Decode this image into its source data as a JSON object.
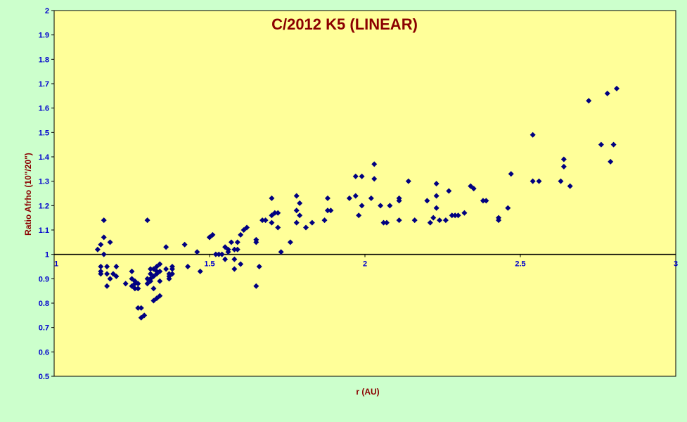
{
  "colors": {
    "background": "#ccffcc",
    "plot_area": "#ffff99",
    "marker": "#000080",
    "title": "#8b0000",
    "tick": "#0000cc"
  },
  "chart_data": {
    "type": "scatter",
    "title": "C/2012 K5 (LINEAR)",
    "xlabel": "r (AU)",
    "ylabel": "Ratio Afrho (10\"/20\")",
    "xlim": [
      1,
      3
    ],
    "ylim": [
      0.5,
      2
    ],
    "x_ticks": [
      "1",
      "1.5",
      "2",
      "2.5",
      "3"
    ],
    "y_ticks": [
      "0.5",
      "0.6",
      "0.7",
      "0.8",
      "0.9",
      "1",
      "1.1",
      "1.2",
      "1.3",
      "1.4",
      "1.5",
      "1.6",
      "1.7",
      "1.8",
      "1.9",
      "2"
    ],
    "reference_line_y": 1,
    "grid": false,
    "marker": "diamond",
    "points": [
      [
        1.14,
        1.02
      ],
      [
        1.15,
        0.93
      ],
      [
        1.15,
        0.92
      ],
      [
        1.15,
        0.95
      ],
      [
        1.15,
        1.04
      ],
      [
        1.16,
        1.14
      ],
      [
        1.16,
        1.07
      ],
      [
        1.16,
        1.0
      ],
      [
        1.17,
        0.87
      ],
      [
        1.17,
        0.95
      ],
      [
        1.17,
        0.92
      ],
      [
        1.18,
        1.05
      ],
      [
        1.18,
        0.9
      ],
      [
        1.19,
        0.92
      ],
      [
        1.2,
        0.95
      ],
      [
        1.2,
        0.91
      ],
      [
        1.23,
        0.88
      ],
      [
        1.25,
        0.87
      ],
      [
        1.25,
        0.93
      ],
      [
        1.25,
        0.9
      ],
      [
        1.26,
        0.86
      ],
      [
        1.26,
        0.88
      ],
      [
        1.26,
        0.89
      ],
      [
        1.27,
        0.78
      ],
      [
        1.27,
        0.86
      ],
      [
        1.27,
        0.88
      ],
      [
        1.28,
        0.74
      ],
      [
        1.28,
        0.78
      ],
      [
        1.29,
        0.75
      ],
      [
        1.3,
        1.14
      ],
      [
        1.3,
        0.9
      ],
      [
        1.3,
        0.88
      ],
      [
        1.31,
        0.94
      ],
      [
        1.31,
        0.92
      ],
      [
        1.31,
        0.9
      ],
      [
        1.31,
        0.89
      ],
      [
        1.32,
        0.86
      ],
      [
        1.32,
        0.94
      ],
      [
        1.32,
        0.81
      ],
      [
        1.32,
        0.91
      ],
      [
        1.33,
        0.92
      ],
      [
        1.33,
        0.95
      ],
      [
        1.33,
        0.82
      ],
      [
        1.33,
        0.93
      ],
      [
        1.34,
        0.96
      ],
      [
        1.34,
        0.93
      ],
      [
        1.34,
        0.83
      ],
      [
        1.34,
        0.89
      ],
      [
        1.36,
        1.03
      ],
      [
        1.36,
        0.94
      ],
      [
        1.37,
        0.92
      ],
      [
        1.37,
        0.9
      ],
      [
        1.37,
        0.91
      ],
      [
        1.38,
        0.94
      ],
      [
        1.38,
        0.95
      ],
      [
        1.38,
        0.92
      ],
      [
        1.42,
        1.04
      ],
      [
        1.43,
        0.95
      ],
      [
        1.46,
        1.01
      ],
      [
        1.47,
        0.93
      ],
      [
        1.5,
        1.07
      ],
      [
        1.5,
        1.07
      ],
      [
        1.51,
        1.08
      ],
      [
        1.52,
        1.0
      ],
      [
        1.53,
        1.0
      ],
      [
        1.54,
        1.0
      ],
      [
        1.55,
        1.03
      ],
      [
        1.55,
        0.98
      ],
      [
        1.56,
        1.02
      ],
      [
        1.56,
        1.01
      ],
      [
        1.57,
        1.05
      ],
      [
        1.58,
        0.98
      ],
      [
        1.58,
        1.02
      ],
      [
        1.58,
        0.94
      ],
      [
        1.59,
        1.05
      ],
      [
        1.59,
        1.02
      ],
      [
        1.6,
        0.96
      ],
      [
        1.6,
        1.08
      ],
      [
        1.61,
        1.1
      ],
      [
        1.62,
        1.11
      ],
      [
        1.65,
        1.05
      ],
      [
        1.65,
        0.87
      ],
      [
        1.65,
        1.06
      ],
      [
        1.66,
        0.95
      ],
      [
        1.67,
        1.14
      ],
      [
        1.68,
        1.14
      ],
      [
        1.7,
        1.16
      ],
      [
        1.7,
        1.23
      ],
      [
        1.7,
        1.13
      ],
      [
        1.71,
        1.17
      ],
      [
        1.72,
        1.11
      ],
      [
        1.72,
        1.17
      ],
      [
        1.73,
        1.01
      ],
      [
        1.76,
        1.05
      ],
      [
        1.78,
        1.24
      ],
      [
        1.78,
        1.18
      ],
      [
        1.78,
        1.13
      ],
      [
        1.79,
        1.16
      ],
      [
        1.79,
        1.21
      ],
      [
        1.81,
        1.11
      ],
      [
        1.83,
        1.13
      ],
      [
        1.87,
        1.14
      ],
      [
        1.88,
        1.18
      ],
      [
        1.88,
        1.23
      ],
      [
        1.89,
        1.18
      ],
      [
        1.95,
        1.23
      ],
      [
        1.97,
        1.32
      ],
      [
        1.97,
        1.24
      ],
      [
        1.98,
        1.16
      ],
      [
        1.99,
        1.32
      ],
      [
        1.99,
        1.2
      ],
      [
        2.02,
        1.23
      ],
      [
        2.03,
        1.31
      ],
      [
        2.03,
        1.37
      ],
      [
        2.05,
        1.2
      ],
      [
        2.06,
        1.13
      ],
      [
        2.07,
        1.13
      ],
      [
        2.08,
        1.2
      ],
      [
        2.11,
        1.22
      ],
      [
        2.11,
        1.14
      ],
      [
        2.11,
        1.23
      ],
      [
        2.14,
        1.3
      ],
      [
        2.16,
        1.14
      ],
      [
        2.2,
        1.22
      ],
      [
        2.21,
        1.13
      ],
      [
        2.22,
        1.15
      ],
      [
        2.23,
        1.29
      ],
      [
        2.23,
        1.24
      ],
      [
        2.23,
        1.19
      ],
      [
        2.24,
        1.14
      ],
      [
        2.26,
        1.14
      ],
      [
        2.27,
        1.26
      ],
      [
        2.28,
        1.16
      ],
      [
        2.29,
        1.16
      ],
      [
        2.3,
        1.16
      ],
      [
        2.32,
        1.17
      ],
      [
        2.34,
        1.28
      ],
      [
        2.35,
        1.27
      ],
      [
        2.38,
        1.22
      ],
      [
        2.39,
        1.22
      ],
      [
        2.43,
        1.15
      ],
      [
        2.43,
        1.14
      ],
      [
        2.46,
        1.19
      ],
      [
        2.47,
        1.33
      ],
      [
        2.54,
        1.49
      ],
      [
        2.54,
        1.3
      ],
      [
        2.56,
        1.3
      ],
      [
        2.63,
        1.3
      ],
      [
        2.64,
        1.39
      ],
      [
        2.64,
        1.36
      ],
      [
        2.66,
        1.28
      ],
      [
        2.72,
        1.63
      ],
      [
        2.76,
        1.45
      ],
      [
        2.78,
        1.66
      ],
      [
        2.79,
        1.38
      ],
      [
        2.8,
        1.45
      ],
      [
        2.81,
        1.68
      ]
    ]
  }
}
